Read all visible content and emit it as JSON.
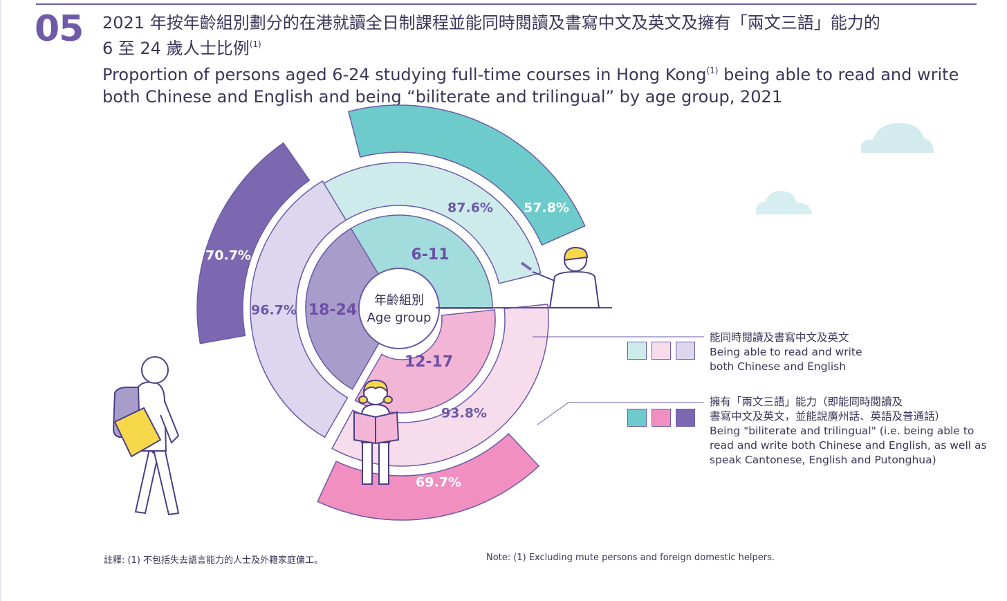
{
  "figure_number": "05",
  "title_zh_line1": "2021 年按年齡組別劃分的在港就讀全日制課程並能同時閱讀及書寫中文及英文及擁有「兩文三語」能力的",
  "title_zh_line2": "6 至 24 歲人士比例",
  "title_en_line1": "Proportion of persons aged 6-24 studying full-time courses in Hong Kong",
  "title_en_line1_tail": " being able to read and write",
  "title_en_line2": "both Chinese and English and being “biliterate and trilingual” by age group, 2021",
  "footnote_marker": "(1)",
  "center_label_zh": "年齡組別",
  "center_label_en": "Age group",
  "legend": [
    {
      "zh": "能同時閱讀及書寫中文及英文",
      "en_line1": "Being able to read and write",
      "en_line2": "both Chinese and English",
      "swatches": [
        "#cdebeb",
        "#f7dcec",
        "#dcd6ee"
      ]
    },
    {
      "zh_line1": "擁有「兩文三語」能力（即能同時閱讀及",
      "zh_line2": "書寫中文及英文，並能說廣州話、英語及普通話）",
      "en_line1": "Being \"biliterate and trilingual\" (i.e.  being able to",
      "en_line2": "read and write both Chinese and English, as well as",
      "en_line3": "speak Cantonese, English and Putonghua)",
      "swatches": [
        "#6ecbcb",
        "#f08fc0",
        "#7b68b0"
      ]
    }
  ],
  "note_zh": "註釋:   (1) 不包括失去語言能力的人士及外籍家庭傭工。",
  "note_en": "Note:   (1) Excluding mute persons and foreign domestic helpers.",
  "chart_data": {
    "type": "radial-bar",
    "categories": [
      "6-11",
      "12-17",
      "18-24"
    ],
    "series": [
      {
        "name": "Being able to read and write both Chinese and English",
        "values": [
          87.6,
          93.8,
          96.7
        ],
        "labels": [
          "87.6%",
          "93.8%",
          "96.7%"
        ]
      },
      {
        "name": "Being \"biliterate and trilingual\"",
        "values": [
          57.8,
          69.7,
          70.7
        ],
        "labels": [
          "57.8%",
          "69.7%",
          "70.7%"
        ]
      }
    ],
    "unit": "%",
    "colors": {
      "6-11": {
        "inner": "#a3dcdc",
        "mid": "#cdebeb",
        "outer": "#6ecbcb"
      },
      "12-17": {
        "inner": "#f3b5d5",
        "mid": "#f7dcec",
        "outer": "#f08fc0"
      },
      "18-24": {
        "inner": "#a89ccb",
        "mid": "#dcd6ee",
        "outer": "#7b68b0"
      }
    }
  }
}
